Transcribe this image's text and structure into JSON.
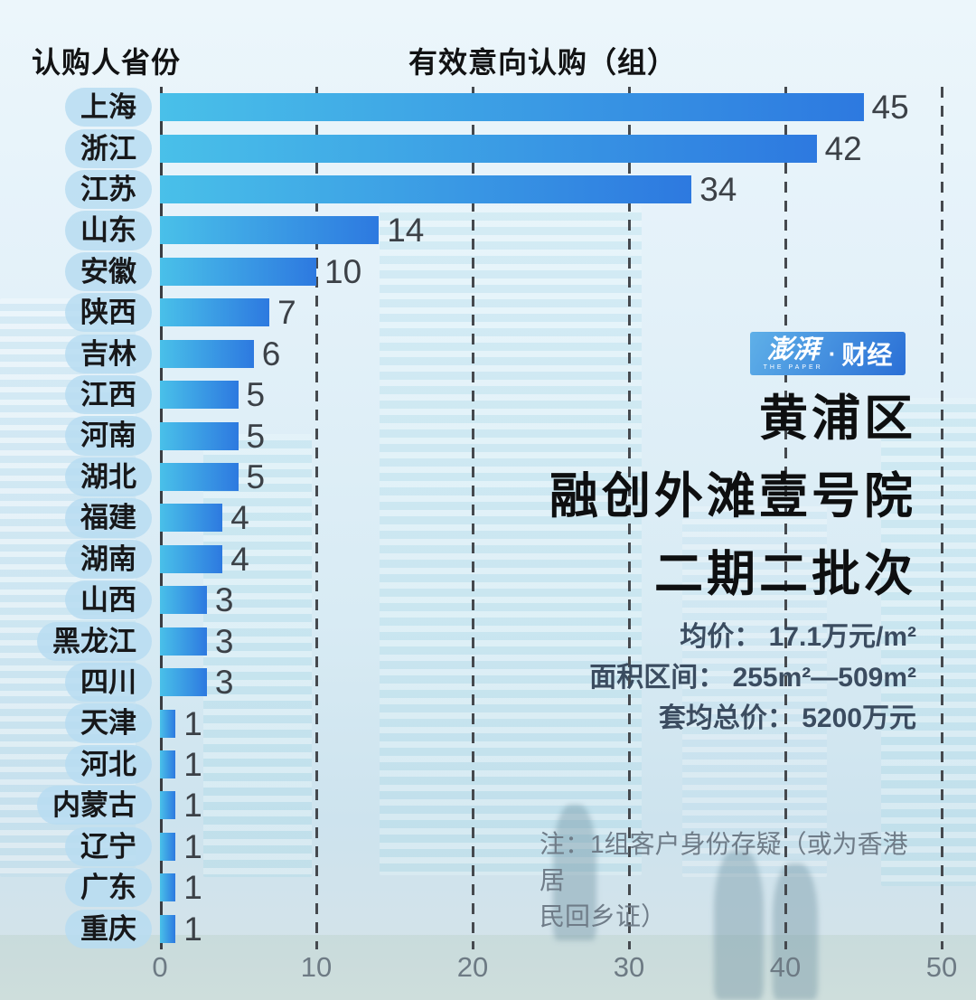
{
  "header": {
    "left_title": "认购人省份",
    "chart_title": "有效意向认购（组）"
  },
  "chart_data": {
    "type": "bar",
    "orientation": "horizontal",
    "title": "有效意向认购（组）",
    "ylabel": "认购人省份",
    "xlabel": "有效意向认购（组）",
    "categories": [
      "上海",
      "浙江",
      "江苏",
      "山东",
      "安徽",
      "陕西",
      "吉林",
      "江西",
      "河南",
      "湖北",
      "福建",
      "湖南",
      "山西",
      "黑龙江",
      "四川",
      "天津",
      "河北",
      "内蒙古",
      "辽宁",
      "广东",
      "重庆"
    ],
    "values": [
      45,
      42,
      34,
      14,
      10,
      7,
      6,
      5,
      5,
      5,
      4,
      4,
      3,
      3,
      3,
      1,
      1,
      1,
      1,
      1,
      1
    ],
    "xlim": [
      0,
      50
    ],
    "xticks": [
      0,
      10,
      20,
      30,
      40,
      50
    ],
    "grid": "dashed-vertical-gridlines",
    "value_labels": "right-of-bar"
  },
  "info": {
    "logo": {
      "brand_cn": "澎湃",
      "brand_en": "THE PAPER",
      "separator": "·",
      "section": "财经"
    },
    "title_lines": [
      "黄浦区",
      "融创外滩壹号院",
      "二期二批次"
    ],
    "stats": [
      {
        "label": "均价：",
        "value": "17.1万元/m²"
      },
      {
        "label": "面积区间：",
        "value": "255m²—509m²"
      },
      {
        "label": "套均总价：",
        "value": "5200万元"
      }
    ],
    "note_lines": [
      "注：1组客户身份存疑（或为香港居",
      "民回乡证）"
    ]
  },
  "colors": {
    "bar_gradient_start": "#49c0e9",
    "bar_gradient_end": "#2d79e0",
    "pill_background": "#b7dcf1",
    "axis_line": "#3a3d42",
    "gridline": "#45494e",
    "value_text": "#3c4147",
    "tick_text": "#6d7a84",
    "stats_text": "#3b4c60",
    "note_text": "#6f7c88",
    "logo_gradient_start": "#5fb0e8",
    "logo_gradient_end": "#2a6fd6",
    "background": "#ddeef7"
  }
}
